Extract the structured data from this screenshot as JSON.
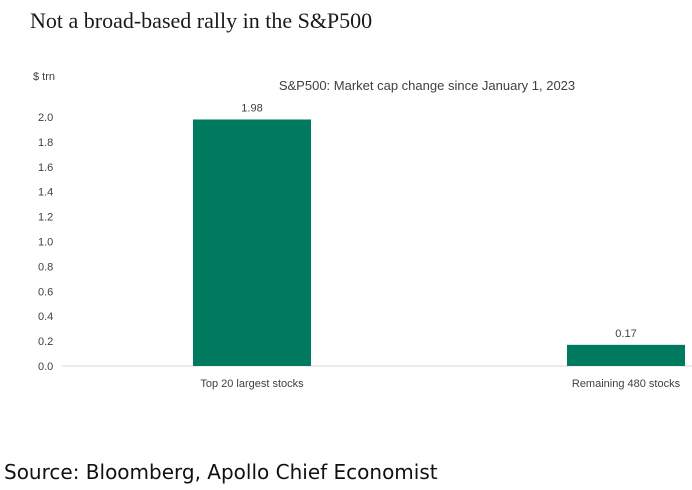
{
  "page": {
    "title": "Not a broad-based rally in the S&P500",
    "source": "Source: Bloomberg, Apollo Chief Economist"
  },
  "chart_data": {
    "type": "bar",
    "title": "S&P500: Market cap change since January 1, 2023",
    "ylabel": "$ trn",
    "xlabel": "",
    "categories": [
      "Top 20 largest stocks",
      "Remaining 480 stocks"
    ],
    "values": [
      1.98,
      0.17
    ],
    "data_labels": [
      "1.98",
      "0.17"
    ],
    "ylim": [
      0,
      2.0
    ],
    "yticks": [
      "0.0",
      "0.2",
      "0.4",
      "0.6",
      "0.8",
      "1.0",
      "1.2",
      "1.4",
      "1.6",
      "1.8",
      "2.0"
    ],
    "grid": false,
    "legend": "none",
    "colors": {
      "bar": "#007a5e",
      "axis": "#d9d9d9",
      "text": "#404040"
    }
  }
}
